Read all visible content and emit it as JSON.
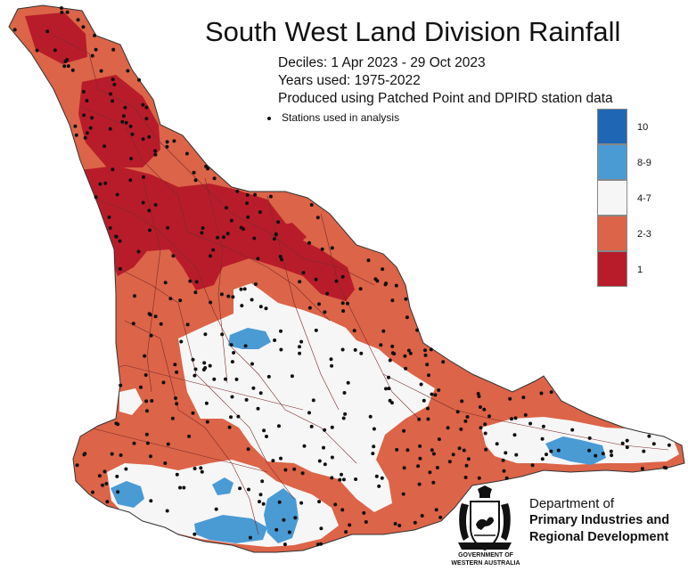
{
  "title": "South West Land Division Rainfall",
  "subtitle_lines": [
    "Deciles:  1 Apr 2023 - 29 Oct 2023",
    "Years used: 1975-2022",
    "Produced using Patched Point and DPIRD station data"
  ],
  "stations_label": "Stations used in analysis",
  "legend": [
    {
      "label": "10",
      "color": "#1f67b4"
    },
    {
      "label": "8-9",
      "color": "#4a9ad4"
    },
    {
      "label": "4-7",
      "color": "#f6f6f6"
    },
    {
      "label": "2-3",
      "color": "#dc6448"
    },
    {
      "label": "1",
      "color": "#b81c2a"
    }
  ],
  "colors": {
    "decile_1": "#b81c2a",
    "decile_2_3": "#dc6448",
    "decile_4_7": "#f6f6f6",
    "decile_8_9": "#4a9ad4",
    "decile_10": "#1f67b4",
    "boundaries": "#7a2a2a",
    "stations": "#111111"
  },
  "logo": {
    "caption_line1": "GOVERNMENT OF",
    "caption_line2": "WESTERN AUSTRALIA",
    "dept_line1": "Department of",
    "dept_line2": "Primary Industries and",
    "dept_line3": "Regional Development"
  }
}
